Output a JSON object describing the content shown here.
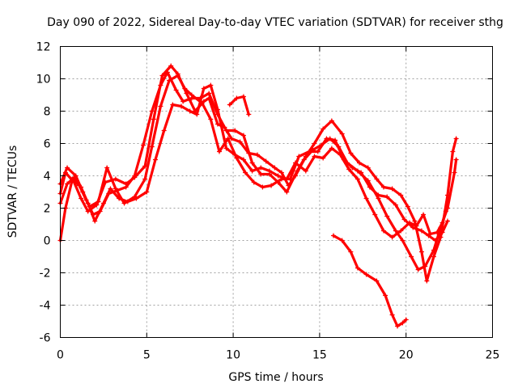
{
  "chart_data": {
    "type": "scatter",
    "title": "Day 090 of 2022, Sidereal Day-to-day VTEC variation (SDTVAR) for receiver sthg",
    "xlabel": "GPS time / hours",
    "ylabel": "SDTVAR / TECUs",
    "xlim": [
      0,
      25
    ],
    "ylim": [
      -6,
      12
    ],
    "xticks": [
      0,
      5,
      10,
      15,
      20,
      25
    ],
    "yticks": [
      -6,
      -4,
      -2,
      0,
      2,
      4,
      6,
      8,
      10,
      12
    ],
    "grid": true,
    "marker": "+",
    "color": "#ff0000",
    "series": [
      {
        "name": "track-1",
        "points": [
          [
            0,
            2.9
          ],
          [
            0.3,
            4.2
          ],
          [
            0.8,
            3.6
          ],
          [
            1.2,
            2.6
          ],
          [
            1.6,
            1.8
          ],
          [
            2.1,
            2.2
          ],
          [
            2.6,
            3.6
          ],
          [
            3.2,
            3.8
          ],
          [
            3.8,
            3.5
          ],
          [
            4.3,
            3.9
          ],
          [
            4.9,
            4.6
          ],
          [
            5.4,
            7.5
          ],
          [
            5.9,
            10.2
          ],
          [
            6.4,
            10.8
          ],
          [
            6.8,
            10.3
          ],
          [
            7.3,
            9.1
          ],
          [
            7.8,
            8.0
          ],
          [
            8.3,
            8.6
          ],
          [
            8.6,
            8.8
          ],
          [
            9.1,
            7.2
          ],
          [
            9.5,
            7.0
          ],
          [
            9.9,
            6.3
          ],
          [
            10.4,
            6.1
          ],
          [
            10.9,
            5.4
          ],
          [
            11.4,
            5.3
          ],
          [
            11.9,
            4.9
          ],
          [
            12.4,
            4.5
          ],
          [
            12.8,
            4.2
          ],
          [
            13.2,
            3.4
          ],
          [
            13.6,
            4.0
          ],
          [
            14.1,
            5.0
          ],
          [
            14.6,
            5.6
          ],
          [
            15.1,
            5.9
          ],
          [
            15.6,
            6.3
          ],
          [
            16.1,
            5.8
          ],
          [
            16.6,
            4.8
          ],
          [
            17.2,
            4.3
          ],
          [
            17.8,
            3.7
          ],
          [
            18.4,
            2.6
          ],
          [
            18.9,
            1.5
          ],
          [
            19.4,
            0.6
          ],
          [
            19.8,
            0.0
          ],
          [
            20.3,
            -1.0
          ],
          [
            20.7,
            -1.8
          ],
          [
            21.1,
            -1.6
          ],
          [
            21.6,
            -0.6
          ],
          [
            22.0,
            0.8
          ],
          [
            22.4,
            2.0
          ],
          [
            22.8,
            4.2
          ],
          [
            22.9,
            5.0
          ]
        ]
      },
      {
        "name": "track-2",
        "points": [
          [
            0,
            3.5
          ],
          [
            0.4,
            4.5
          ],
          [
            0.9,
            4.0
          ],
          [
            1.3,
            3.0
          ],
          [
            1.7,
            2.1
          ],
          [
            2.2,
            2.4
          ],
          [
            2.7,
            4.5
          ],
          [
            3.2,
            3.2
          ],
          [
            3.7,
            2.3
          ],
          [
            4.3,
            2.7
          ],
          [
            4.9,
            3.8
          ],
          [
            5.3,
            5.8
          ],
          [
            5.8,
            8.3
          ],
          [
            6.3,
            9.9
          ],
          [
            6.8,
            10.2
          ],
          [
            7.2,
            9.4
          ],
          [
            7.6,
            9.0
          ],
          [
            8.2,
            8.5
          ],
          [
            8.7,
            7.5
          ],
          [
            9.2,
            5.5
          ],
          [
            9.7,
            6.3
          ],
          [
            10.2,
            5.1
          ],
          [
            10.7,
            4.2
          ],
          [
            11.2,
            3.6
          ],
          [
            11.7,
            3.3
          ],
          [
            12.2,
            3.4
          ],
          [
            12.8,
            3.8
          ],
          [
            13.3,
            3.8
          ],
          [
            13.8,
            5.2
          ],
          [
            14.4,
            5.5
          ],
          [
            14.9,
            5.5
          ],
          [
            15.4,
            6.3
          ],
          [
            15.9,
            6.2
          ],
          [
            16.4,
            5.0
          ],
          [
            16.9,
            4.5
          ],
          [
            17.4,
            4.2
          ],
          [
            17.9,
            3.3
          ],
          [
            18.4,
            2.8
          ],
          [
            18.9,
            2.7
          ],
          [
            19.4,
            2.2
          ],
          [
            19.9,
            1.3
          ],
          [
            20.4,
            0.8
          ],
          [
            20.9,
            0.6
          ],
          [
            21.3,
            0.3
          ],
          [
            21.7,
            0.0
          ],
          [
            22.1,
            0.5
          ],
          [
            22.4,
            1.2
          ]
        ]
      },
      {
        "name": "track-3",
        "points": [
          [
            0,
            0.0
          ],
          [
            0.3,
            2.0
          ],
          [
            0.7,
            3.8
          ],
          [
            1.1,
            3.4
          ],
          [
            1.5,
            2.5
          ],
          [
            1.9,
            1.6
          ],
          [
            2.3,
            1.8
          ],
          [
            2.8,
            2.9
          ],
          [
            3.3,
            3.1
          ],
          [
            3.8,
            3.3
          ],
          [
            4.3,
            4.0
          ],
          [
            4.8,
            5.9
          ],
          [
            5.3,
            8.0
          ],
          [
            5.8,
            9.6
          ],
          [
            6.2,
            10.4
          ],
          [
            6.7,
            9.3
          ],
          [
            7.1,
            8.6
          ],
          [
            7.6,
            8.8
          ],
          [
            8.1,
            8.8
          ],
          [
            8.6,
            9.1
          ],
          [
            9.1,
            7.8
          ],
          [
            9.6,
            6.8
          ],
          [
            10.1,
            6.8
          ],
          [
            10.6,
            6.5
          ],
          [
            11.1,
            4.8
          ],
          [
            11.6,
            4.1
          ],
          [
            12.1,
            4.1
          ],
          [
            12.6,
            3.6
          ],
          [
            13.1,
            3.0
          ],
          [
            13.7,
            4.3
          ],
          [
            14.2,
            5.2
          ],
          [
            14.7,
            6.0
          ],
          [
            15.2,
            6.9
          ],
          [
            15.7,
            7.4
          ],
          [
            16.3,
            6.6
          ],
          [
            16.8,
            5.4
          ],
          [
            17.3,
            4.8
          ],
          [
            17.8,
            4.5
          ],
          [
            18.3,
            3.8
          ],
          [
            18.7,
            3.3
          ],
          [
            19.2,
            3.2
          ],
          [
            19.7,
            2.8
          ],
          [
            20.1,
            2.1
          ],
          [
            20.5,
            1.2
          ],
          [
            20.9,
            -0.7
          ],
          [
            21.2,
            -2.5
          ],
          [
            21.6,
            -1.0
          ],
          [
            22.0,
            0.2
          ],
          [
            22.4,
            2.8
          ],
          [
            22.7,
            5.5
          ],
          [
            22.9,
            6.3
          ]
        ]
      },
      {
        "name": "track-4",
        "points": [
          [
            0,
            2.3
          ],
          [
            0.4,
            3.5
          ],
          [
            0.8,
            3.9
          ],
          [
            1.2,
            3.3
          ],
          [
            1.6,
            2.3
          ],
          [
            2.0,
            1.2
          ],
          [
            2.5,
            2.3
          ],
          [
            2.9,
            3.2
          ],
          [
            3.4,
            2.6
          ],
          [
            3.9,
            2.4
          ],
          [
            4.4,
            2.6
          ],
          [
            5.0,
            3.0
          ],
          [
            5.5,
            5.0
          ],
          [
            6.0,
            6.8
          ],
          [
            6.5,
            8.4
          ],
          [
            7.0,
            8.3
          ],
          [
            7.5,
            8.0
          ],
          [
            7.9,
            7.8
          ],
          [
            8.3,
            9.4
          ],
          [
            8.7,
            9.6
          ],
          [
            9.1,
            8.1
          ],
          [
            9.6,
            5.7
          ],
          [
            10.1,
            5.3
          ],
          [
            10.6,
            5.0
          ],
          [
            11.1,
            4.3
          ],
          [
            11.6,
            4.5
          ],
          [
            12.1,
            4.3
          ],
          [
            12.6,
            4.0
          ],
          [
            13.1,
            3.8
          ],
          [
            13.6,
            4.8
          ],
          [
            14.2,
            4.3
          ],
          [
            14.7,
            5.2
          ],
          [
            15.2,
            5.1
          ],
          [
            15.7,
            5.7
          ],
          [
            16.2,
            5.3
          ],
          [
            16.7,
            4.4
          ],
          [
            17.2,
            3.8
          ],
          [
            17.7,
            2.6
          ],
          [
            18.2,
            1.6
          ],
          [
            18.7,
            0.6
          ],
          [
            19.2,
            0.2
          ],
          [
            19.7,
            0.6
          ],
          [
            20.2,
            1.1
          ],
          [
            20.6,
            0.9
          ],
          [
            21.0,
            1.6
          ],
          [
            21.4,
            0.4
          ],
          [
            21.8,
            0.5
          ],
          [
            22.1,
            1.1
          ],
          [
            22.3,
            1.8
          ]
        ]
      },
      {
        "name": "track-5",
        "points": [
          [
            9.8,
            8.4
          ],
          [
            10.2,
            8.8
          ],
          [
            10.6,
            8.9
          ],
          [
            10.9,
            7.8
          ]
        ]
      },
      {
        "name": "track-6",
        "points": [
          [
            15.8,
            0.3
          ],
          [
            16.3,
            0.0
          ],
          [
            16.8,
            -0.7
          ],
          [
            17.2,
            -1.7
          ],
          [
            17.7,
            -2.1
          ],
          [
            18.3,
            -2.5
          ],
          [
            18.8,
            -3.4
          ],
          [
            19.2,
            -4.6
          ],
          [
            19.5,
            -5.3
          ],
          [
            19.8,
            -5.1
          ],
          [
            20.0,
            -4.9
          ]
        ]
      }
    ]
  }
}
